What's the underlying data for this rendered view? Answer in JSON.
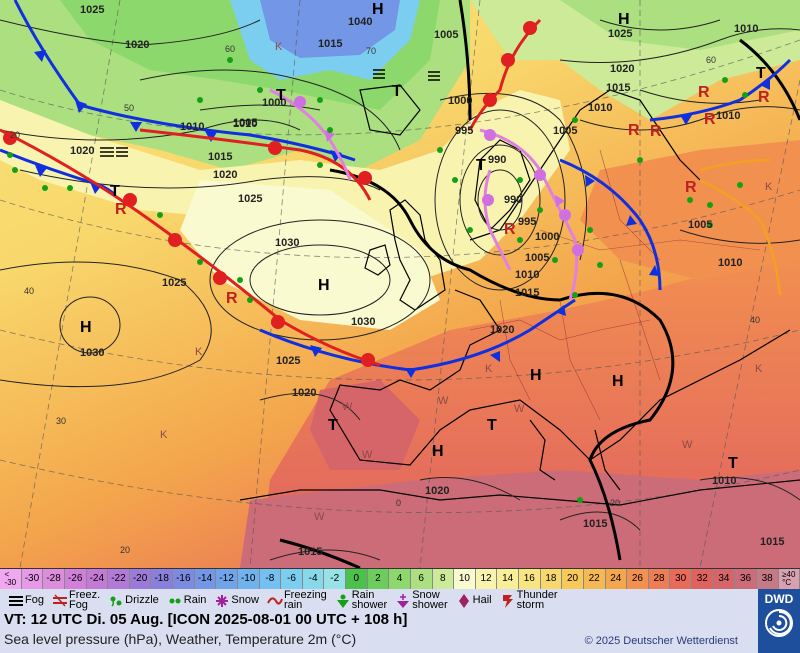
{
  "header": {
    "valid_time": "VT: 12 UTC Di.  05 Aug. [ICON 2025-08-01  00 UTC + 108 h]",
    "subtitle": "Sea level pressure (hPa), Weather, Temperature 2m (°C)",
    "copyright": "© 2025 Deutscher Wetterdienst",
    "logo_text": "DWD"
  },
  "colorbar": [
    {
      "label": "<\n-30",
      "color": "#f0a8f0"
    },
    {
      "label": "-30",
      "color": "#e69ae6"
    },
    {
      "label": "-28",
      "color": "#dc8edc"
    },
    {
      "label": "-26",
      "color": "#d080d8"
    },
    {
      "label": "-24",
      "color": "#c47ad4"
    },
    {
      "label": "-22",
      "color": "#b27ad6"
    },
    {
      "label": "-20",
      "color": "#9c7ad8"
    },
    {
      "label": "-18",
      "color": "#8a80dc"
    },
    {
      "label": "-16",
      "color": "#7c8ae0"
    },
    {
      "label": "-14",
      "color": "#7496e6"
    },
    {
      "label": "-12",
      "color": "#70a4ea"
    },
    {
      "label": "-10",
      "color": "#70b2ee"
    },
    {
      "label": "-8",
      "color": "#74c0f0"
    },
    {
      "label": "-6",
      "color": "#7ccef0"
    },
    {
      "label": "-4",
      "color": "#88d8ec"
    },
    {
      "label": "-2",
      "color": "#98e2e6"
    },
    {
      "label": "0",
      "color": "#4cc04c"
    },
    {
      "label": "2",
      "color": "#6ccc5c"
    },
    {
      "label": "4",
      "color": "#8cd86c"
    },
    {
      "label": "6",
      "color": "#acdf80"
    },
    {
      "label": "8",
      "color": "#ccea98"
    },
    {
      "label": "10",
      "color": "#fafad0"
    },
    {
      "label": "12",
      "color": "#f8f4b0"
    },
    {
      "label": "14",
      "color": "#f8ee98"
    },
    {
      "label": "16",
      "color": "#f8e480"
    },
    {
      "label": "18",
      "color": "#f8d86c"
    },
    {
      "label": "20",
      "color": "#f8c858"
    },
    {
      "label": "22",
      "color": "#f6b850"
    },
    {
      "label": "24",
      "color": "#f4a64c"
    },
    {
      "label": "26",
      "color": "#f29050"
    },
    {
      "label": "28",
      "color": "#ee7c54"
    },
    {
      "label": "30",
      "color": "#e86a58"
    },
    {
      "label": "32",
      "color": "#e0625e"
    },
    {
      "label": "34",
      "color": "#d6656a"
    },
    {
      "label": "36",
      "color": "#cc6c78"
    },
    {
      "label": "38",
      "color": "#c67a86"
    },
    {
      "label": "≥40\n°C",
      "color": "#d8a0b0"
    }
  ],
  "legend": [
    {
      "label": "Fog",
      "icon": "fog-icon"
    },
    {
      "label": "Freez.\nFog",
      "icon": "freezing-fog-icon"
    },
    {
      "label": "Drizzle",
      "icon": "drizzle-icon"
    },
    {
      "label": "Rain",
      "icon": "rain-icon"
    },
    {
      "label": "Snow",
      "icon": "snow-icon"
    },
    {
      "label": "Freezing\nrain",
      "icon": "freezing-rain-icon"
    },
    {
      "label": "Rain\nshower",
      "icon": "rain-shower-icon"
    },
    {
      "label": "Snow\nshower",
      "icon": "snow-shower-icon"
    },
    {
      "label": "Hail",
      "icon": "hail-icon"
    },
    {
      "label": "Thunder\nstorm",
      "icon": "thunderstorm-icon"
    }
  ],
  "map": {
    "isobar_labels": [
      "1025",
      "1020",
      "1010",
      "1005",
      "1000",
      "995",
      "990",
      "1015",
      "1030",
      "1040",
      "1025",
      "1020",
      "1015",
      "1010",
      "1005",
      "1000",
      "1030",
      "1025",
      "1020",
      "1015",
      "1010",
      "1005",
      "1000",
      "995",
      "990",
      "1030",
      "1020",
      "1025",
      "1020",
      "1040",
      "1030",
      "1015",
      "1010",
      "1005",
      "1010",
      "1015",
      "1005",
      "1010",
      "1010",
      "1020",
      "1025",
      "1015",
      "1020",
      "1015",
      "1010"
    ],
    "pressure_centers": [
      {
        "label": "H",
        "value": "1030"
      },
      {
        "label": "H",
        "value": ""
      },
      {
        "label": "T",
        "value": "990"
      },
      {
        "label": "T",
        "value": ""
      },
      {
        "label": "T",
        "value": ""
      },
      {
        "label": "H",
        "value": ""
      },
      {
        "label": "H",
        "value": "1025"
      },
      {
        "label": "H",
        "value": ""
      },
      {
        "label": "H",
        "value": ""
      },
      {
        "label": "T",
        "value": "1010"
      },
      {
        "label": "T",
        "value": ""
      },
      {
        "label": "H",
        "value": ""
      },
      {
        "label": "T",
        "value": ""
      },
      {
        "label": "T",
        "value": "1005"
      },
      {
        "label": "T",
        "value": ""
      }
    ],
    "small_labels": [
      "K",
      "K",
      "K",
      "K",
      "W",
      "W",
      "W",
      "W",
      "W",
      "W",
      "K",
      "K"
    ],
    "grid_labels": [
      "60",
      "50",
      "20",
      "40",
      "30",
      "20",
      "0",
      "70",
      "60",
      "50",
      "40",
      "20",
      "30"
    ]
  }
}
